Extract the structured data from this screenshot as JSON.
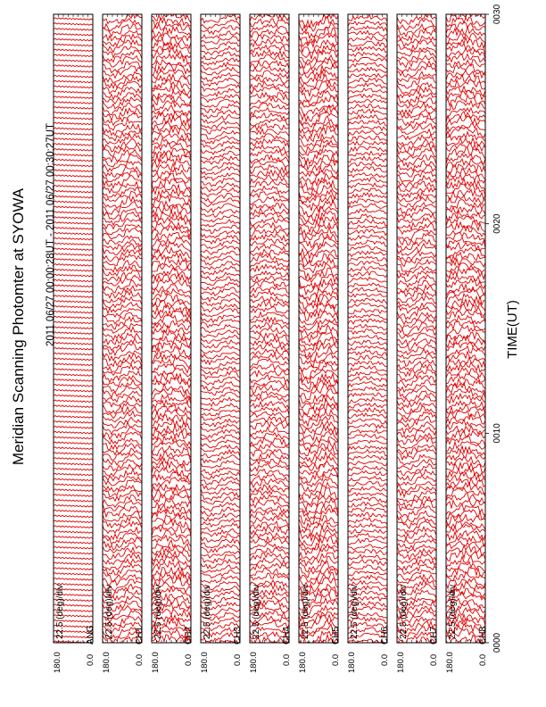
{
  "title": "Meridian Scanning Photomter at SYOWA",
  "subtitle": "2011 06/27 00:00:28UT - 2011 06/27 00:30:27UT",
  "xlabel": "TIME(UT)",
  "xticks": [
    "0000",
    "0010",
    "0020",
    "0030"
  ],
  "scale_label": "22.5 (deg)/div",
  "colors": {
    "trace": "#e00000",
    "frame": "#000000",
    "background": "#ffffff"
  },
  "chart_data": {
    "type": "line",
    "title": "Meridian Scanning Photomter at SYOWA",
    "subtitle": "2011 06/27 00:00:28UT - 2011 06/27 00:30:27UT",
    "xlabel": "TIME(UT)",
    "xlim": [
      "0000",
      "0030"
    ],
    "x_ticks": [
      "0000",
      "0010",
      "0020",
      "0030"
    ],
    "panels": [
      {
        "name": "ANG",
        "ylim": [
          0.0,
          180.0
        ],
        "ytick_top": "180.0",
        "ytick_bottom": "0.0",
        "scale": "22.5 (deg)/div"
      },
      {
        "name": "CH1",
        "ylim": [
          0.0,
          180.0
        ],
        "ytick_top": "180.0",
        "ytick_bottom": "0.0",
        "scale": "22.5 (deg)/div"
      },
      {
        "name": "CH2",
        "ylim": [
          0.0,
          180.0
        ],
        "ytick_top": "180.0",
        "ytick_bottom": "0.0",
        "scale": "22.5 (deg)/div"
      },
      {
        "name": "CH3",
        "ylim": [
          0.0,
          180.0
        ],
        "ytick_top": "180.0",
        "ytick_bottom": "0.0",
        "scale": "22.5 (deg)/div"
      },
      {
        "name": "CH4",
        "ylim": [
          0.0,
          180.0
        ],
        "ytick_top": "180.0",
        "ytick_bottom": "0.0",
        "scale": "22.5 (deg)/div"
      },
      {
        "name": "CH5",
        "ylim": [
          0.0,
          180.0
        ],
        "ytick_top": "180.0",
        "ytick_bottom": "0.0",
        "scale": "22.5 (deg)/div"
      },
      {
        "name": "CH6",
        "ylim": [
          0.0,
          180.0
        ],
        "ytick_top": "180.0",
        "ytick_bottom": "0.0",
        "scale": "22.5 (deg)/div"
      },
      {
        "name": "CH7",
        "ylim": [
          0.0,
          180.0
        ],
        "ytick_top": "180.0",
        "ytick_bottom": "0.0",
        "scale": "22.5 (deg)/div"
      },
      {
        "name": "CH8",
        "ylim": [
          0.0,
          180.0
        ],
        "ytick_top": "180.0",
        "ytick_bottom": "0.0",
        "scale": "22.5 (deg)/div"
      }
    ],
    "traces_per_panel": 120,
    "grid": false
  }
}
